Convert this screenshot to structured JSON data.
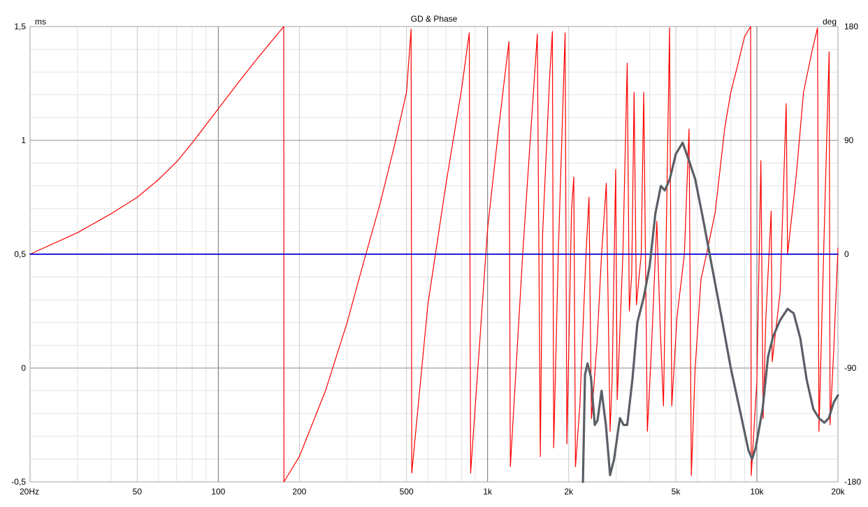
{
  "chart_data": {
    "type": "line",
    "title": "GD & Phase",
    "y_left_unit": "ms",
    "y_right_unit": "deg",
    "x_scale": "log",
    "xlim": [
      20,
      20000
    ],
    "ylim_left": [
      -0.5,
      1.5
    ],
    "ylim_right": [
      -180,
      180
    ],
    "grid": true,
    "x_ticks": [
      {
        "value": 20,
        "label": "20Hz"
      },
      {
        "value": 50,
        "label": "50"
      },
      {
        "value": 100,
        "label": "100"
      },
      {
        "value": 200,
        "label": "200"
      },
      {
        "value": 500,
        "label": "500"
      },
      {
        "value": 1000,
        "label": "1k"
      },
      {
        "value": 2000,
        "label": "2k"
      },
      {
        "value": 5000,
        "label": "5k"
      },
      {
        "value": 10000,
        "label": "10k"
      },
      {
        "value": 20000,
        "label": "20k"
      }
    ],
    "y_left_ticks": [
      {
        "value": 1.5,
        "label": "1,5"
      },
      {
        "value": 1,
        "label": "1"
      },
      {
        "value": 0.5,
        "label": "0,5"
      },
      {
        "value": 0,
        "label": "0"
      },
      {
        "value": -0.5,
        "label": "-0,5"
      }
    ],
    "y_right_ticks": [
      {
        "value": 180,
        "label": "180"
      },
      {
        "value": 90,
        "label": "90"
      },
      {
        "value": 0,
        "label": "0"
      },
      {
        "value": -90,
        "label": "-90"
      },
      {
        "value": -180,
        "label": "-180"
      }
    ],
    "series": [
      {
        "axis": "right",
        "color": "#ff0000",
        "stroke_width": 1.2,
        "points": [
          [
            20,
            0
          ],
          [
            30,
            17
          ],
          [
            40,
            32
          ],
          [
            50,
            45
          ],
          [
            60,
            59
          ],
          [
            70,
            73
          ],
          [
            80,
            88
          ],
          [
            100,
            115
          ],
          [
            120,
            137
          ],
          [
            140,
            155
          ],
          [
            160,
            170
          ],
          [
            175,
            180
          ],
          [
            175.3,
            -180
          ],
          [
            200,
            -160
          ],
          [
            250,
            -108
          ],
          [
            300,
            -55
          ],
          [
            350,
            -3
          ],
          [
            400,
            41
          ],
          [
            450,
            85
          ],
          [
            500,
            128
          ],
          [
            520,
            178
          ],
          [
            523,
            -173
          ],
          [
            600,
            -40
          ],
          [
            700,
            55
          ],
          [
            800,
            130
          ],
          [
            855,
            175
          ],
          [
            865,
            -173
          ],
          [
            1000,
            20
          ],
          [
            1100,
            100
          ],
          [
            1200,
            168
          ],
          [
            1215,
            -168
          ],
          [
            1350,
            0
          ],
          [
            1450,
            100
          ],
          [
            1530,
            174
          ],
          [
            1570,
            -160
          ],
          [
            1600,
            15
          ],
          [
            1700,
            140
          ],
          [
            1740,
            176
          ],
          [
            1760,
            -153
          ],
          [
            1830,
            0
          ],
          [
            1940,
            175
          ],
          [
            1970,
            -150
          ],
          [
            2050,
            35
          ],
          [
            2090,
            61
          ],
          [
            2120,
            -168
          ],
          [
            2200,
            -120
          ],
          [
            2320,
            0
          ],
          [
            2380,
            45
          ],
          [
            2430,
            -130
          ],
          [
            2550,
            -70
          ],
          [
            2650,
            0
          ],
          [
            2760,
            56
          ],
          [
            2850,
            -140
          ],
          [
            2900,
            -100
          ],
          [
            2990,
            67
          ],
          [
            3030,
            -115
          ],
          [
            3180,
            0
          ],
          [
            3300,
            151
          ],
          [
            3360,
            -45
          ],
          [
            3430,
            -15
          ],
          [
            3500,
            128
          ],
          [
            3570,
            -40
          ],
          [
            3720,
            0
          ],
          [
            3800,
            128
          ],
          [
            3920,
            -140
          ],
          [
            4050,
            -80
          ],
          [
            4250,
            26
          ],
          [
            4380,
            -60
          ],
          [
            4500,
            -120
          ],
          [
            4740,
            179
          ],
          [
            4830,
            -120
          ],
          [
            5050,
            -50
          ],
          [
            5380,
            0
          ],
          [
            5600,
            99
          ],
          [
            5710,
            -175
          ],
          [
            5900,
            -90
          ],
          [
            6200,
            -20
          ],
          [
            6500,
            0
          ],
          [
            7000,
            33
          ],
          [
            7600,
            100
          ],
          [
            8000,
            128
          ],
          [
            8500,
            150
          ],
          [
            9000,
            172
          ],
          [
            9480,
            180
          ],
          [
            9530,
            -175
          ],
          [
            10000,
            -100
          ],
          [
            10350,
            74
          ],
          [
            10550,
            -130
          ],
          [
            10800,
            -50
          ],
          [
            11300,
            34
          ],
          [
            11400,
            -85
          ],
          [
            12200,
            -30
          ],
          [
            12850,
            119
          ],
          [
            13000,
            0
          ],
          [
            14000,
            62
          ],
          [
            14900,
            128
          ],
          [
            16000,
            160
          ],
          [
            16800,
            179
          ],
          [
            17000,
            -140
          ],
          [
            18000,
            60
          ],
          [
            18550,
            160
          ],
          [
            18700,
            -135
          ],
          [
            19300,
            -75
          ],
          [
            20000,
            5
          ],
          [
            20000,
            5
          ]
        ]
      },
      {
        "axis": "left",
        "color": "#0000d8",
        "stroke_width": 1.8,
        "points": [
          [
            20,
            0.5
          ],
          [
            20000,
            0.5
          ]
        ]
      },
      {
        "axis": "left",
        "color": "#5a5f66",
        "stroke_width": 3.2,
        "points": [
          [
            2260,
            -0.5
          ],
          [
            2300,
            -0.03
          ],
          [
            2350,
            0.02
          ],
          [
            2420,
            -0.04
          ],
          [
            2500,
            -0.25
          ],
          [
            2560,
            -0.23
          ],
          [
            2650,
            -0.1
          ],
          [
            2750,
            -0.25
          ],
          [
            2850,
            -0.47
          ],
          [
            2950,
            -0.4
          ],
          [
            3100,
            -0.22
          ],
          [
            3200,
            -0.25
          ],
          [
            3300,
            -0.25
          ],
          [
            3450,
            -0.05
          ],
          [
            3600,
            0.2
          ],
          [
            3800,
            0.31
          ],
          [
            4000,
            0.45
          ],
          [
            4200,
            0.68
          ],
          [
            4400,
            0.8
          ],
          [
            4550,
            0.78
          ],
          [
            4750,
            0.83
          ],
          [
            5000,
            0.94
          ],
          [
            5300,
            0.99
          ],
          [
            5600,
            0.91
          ],
          [
            5900,
            0.83
          ],
          [
            6300,
            0.66
          ],
          [
            6800,
            0.45
          ],
          [
            7400,
            0.22
          ],
          [
            8000,
            0.0
          ],
          [
            8700,
            -0.2
          ],
          [
            9300,
            -0.36
          ],
          [
            9600,
            -0.4
          ],
          [
            9900,
            -0.35
          ],
          [
            10500,
            -0.18
          ],
          [
            11000,
            0.05
          ],
          [
            11500,
            0.14
          ],
          [
            12200,
            0.21
          ],
          [
            13000,
            0.26
          ],
          [
            13700,
            0.24
          ],
          [
            14500,
            0.13
          ],
          [
            15300,
            -0.05
          ],
          [
            16200,
            -0.18
          ],
          [
            17000,
            -0.22
          ],
          [
            17800,
            -0.24
          ],
          [
            18500,
            -0.22
          ],
          [
            19300,
            -0.15
          ],
          [
            20000,
            -0.12
          ]
        ]
      }
    ]
  }
}
